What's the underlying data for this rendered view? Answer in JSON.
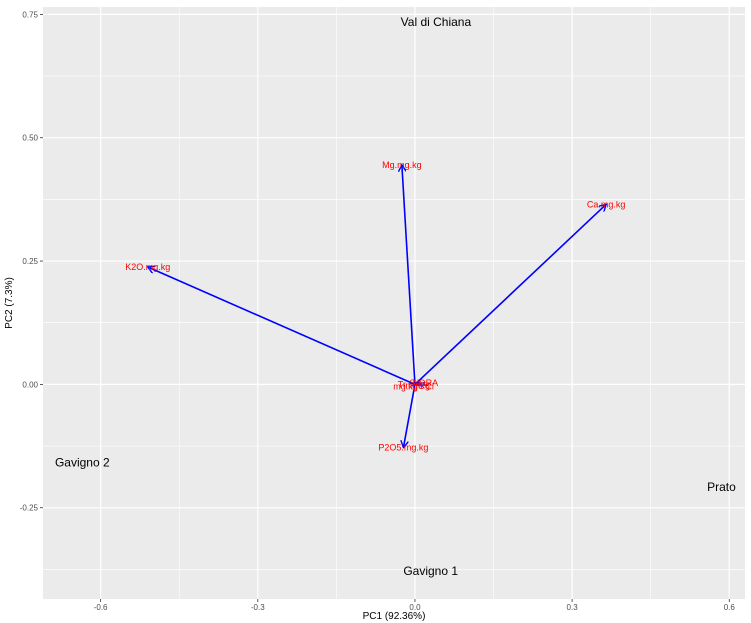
{
  "chart_data": {
    "type": "biplot",
    "xlabel": "PC1 (92.36%)",
    "ylabel": "PC2 (7.3%)",
    "xlim": [
      -0.71,
      0.63
    ],
    "ylim": [
      -0.435,
      0.765
    ],
    "x_ticks": [
      {
        "value": -0.6,
        "label": "-0.6"
      },
      {
        "value": -0.3,
        "label": "-0.3"
      },
      {
        "value": 0.0,
        "label": "0.0"
      },
      {
        "value": 0.3,
        "label": "0.3"
      },
      {
        "value": 0.6,
        "label": "0.6"
      }
    ],
    "y_ticks": [
      {
        "value": 0.75,
        "label": "0.75"
      },
      {
        "value": 0.5,
        "label": "0.50"
      },
      {
        "value": 0.25,
        "label": "0.25"
      },
      {
        "value": 0.0,
        "label": "0.00"
      },
      {
        "value": -0.25,
        "label": "-0.25"
      }
    ],
    "grid": true,
    "observations": [
      {
        "label": "Val di Chiana",
        "x": 0.04,
        "y": 0.735
      },
      {
        "label": "Gavigno 2",
        "x": -0.635,
        "y": -0.158
      },
      {
        "label": "Prato",
        "x": 0.585,
        "y": -0.208
      },
      {
        "label": "Gavigno 1",
        "x": 0.03,
        "y": -0.378
      }
    ],
    "loadings": [
      {
        "label": "Mg.mg.kg",
        "x": -0.025,
        "y": 0.445
      },
      {
        "label": "Ca.mg.kg",
        "x": 0.365,
        "y": 0.365
      },
      {
        "label": "K2O.mg.kg",
        "x": -0.51,
        "y": 0.238
      },
      {
        "label": "P2O5.mg.kg",
        "x": -0.022,
        "y": -0.128
      }
    ],
    "overlapping_labels": [
      "Sa",
      "NDRA",
      "Tr",
      "C",
      "mg.kg",
      "Cl",
      "mg.kg"
    ],
    "colors": {
      "panel": "#ebebeb",
      "grid": "#ffffff",
      "arrow": "#0000ff",
      "loading_label": "#ff0000",
      "observation_label": "#000000"
    }
  }
}
